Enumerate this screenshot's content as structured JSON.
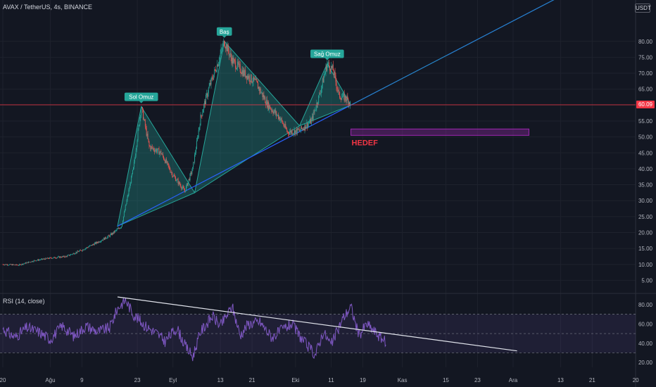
{
  "header": {
    "symbol_title": "AVAX / TetherUS, 4s, BINANCE",
    "currency": "USDT"
  },
  "colors": {
    "background": "#131722",
    "grid": "#1e222d",
    "axis_text": "#b2b5be",
    "candle_up": "#26a69a",
    "candle_down": "#ef5350",
    "pattern_fill": "rgba(38,166,154,0.30)",
    "pattern_line": "#26a69a",
    "trendline": "#2962ff",
    "price_line": "#f23645",
    "target_box_fill": "rgba(156,39,176,0.35)",
    "target_box_border": "#9c27b0",
    "target_text": "#f23645",
    "rsi_line": "#7e57c2",
    "rsi_band": "rgba(126,87,194,0.12)"
  },
  "current_price": "60.09",
  "annotations": {
    "left_shoulder": "Sol Omuz",
    "head": "Baş",
    "right_shoulder": "Sağ Omuz",
    "target": "HEDEF"
  },
  "rsi_panel": {
    "title": "RSI (14, close)"
  },
  "chart_data": [
    {
      "type": "candlestick",
      "title": "AVAX / TetherUS, 4s, BINANCE",
      "y_axis_ticks": [
        5,
        10,
        15,
        20,
        25,
        30,
        35,
        40,
        45,
        50,
        55,
        60,
        65,
        70,
        75,
        80
      ],
      "y_tick_labels": [
        "5.00",
        "10.00",
        "15.00",
        "20.00",
        "25.00",
        "30.00",
        "35.00",
        "40.00",
        "45.00",
        "50.00",
        "55.00",
        "60.00",
        "65.00",
        "70.00",
        "75.00",
        "80.00"
      ],
      "ylim": [
        2,
        89
      ],
      "x_tick_labels": [
        "20",
        "Ağu",
        "9",
        "23",
        "Eyl",
        "13",
        "21",
        "Eki",
        "11",
        "19",
        "Kas",
        "15",
        "23",
        "Ara",
        "13",
        "21",
        "20"
      ],
      "x_tick_days": [
        0,
        12,
        20,
        34,
        43,
        55,
        63,
        74,
        83,
        91,
        101,
        112,
        120,
        129,
        141,
        149,
        160
      ],
      "x_axis_origin": "2021-07-20",
      "price_path": [
        [
          0,
          10
        ],
        [
          4,
          9.8
        ],
        [
          8,
          11.2
        ],
        [
          12,
          12
        ],
        [
          16,
          12.5
        ],
        [
          20,
          14.5
        ],
        [
          24,
          17
        ],
        [
          27,
          19
        ],
        [
          30,
          22
        ],
        [
          33,
          40
        ],
        [
          35,
          59.5
        ],
        [
          37,
          47
        ],
        [
          40,
          45
        ],
        [
          43,
          38
        ],
        [
          46,
          33
        ],
        [
          48,
          40
        ],
        [
          50,
          56
        ],
        [
          52,
          65
        ],
        [
          54,
          72
        ],
        [
          56,
          80
        ],
        [
          58,
          74
        ],
        [
          61,
          70
        ],
        [
          64,
          67
        ],
        [
          67,
          60
        ],
        [
          70,
          56
        ],
        [
          72,
          51.5
        ],
        [
          75,
          52
        ],
        [
          78,
          55
        ],
        [
          80,
          63
        ],
        [
          82,
          73
        ],
        [
          83.5,
          71
        ],
        [
          85,
          63
        ],
        [
          87,
          62
        ],
        [
          88,
          60.1
        ]
      ],
      "head_and_shoulders": {
        "left_shoulder": {
          "day": 35,
          "price": 59.5
        },
        "head": {
          "day": 56,
          "price": 80
        },
        "right_shoulder": {
          "day": 82,
          "price": 73
        },
        "neckline": [
          [
            29,
            22
          ],
          [
            48.5,
            32.5
          ],
          [
            75,
            53.5
          ],
          [
            88,
            60
          ]
        ]
      },
      "current_price": 60.09,
      "target_zone": {
        "day_start": 88,
        "day_end": 133,
        "price_low": 50.5,
        "price_high": 52.5,
        "label": "HEDEF"
      }
    },
    {
      "type": "line",
      "title": "RSI (14, close)",
      "y_tick_labels": [
        "20.00",
        "40.00",
        "60.00",
        "80.00"
      ],
      "y_ticks": [
        20,
        40,
        60,
        80
      ],
      "ylim": [
        15,
        88
      ],
      "bands": [
        30,
        50,
        70
      ],
      "rsi_path": [
        [
          0,
          55
        ],
        [
          3,
          46
        ],
        [
          6,
          56
        ],
        [
          9,
          52
        ],
        [
          12,
          44
        ],
        [
          15,
          58
        ],
        [
          18,
          47
        ],
        [
          21,
          58
        ],
        [
          24,
          52
        ],
        [
          27,
          56
        ],
        [
          29,
          76
        ],
        [
          31,
          85
        ],
        [
          33,
          70
        ],
        [
          36,
          58
        ],
        [
          39,
          50
        ],
        [
          41,
          42
        ],
        [
          44,
          56
        ],
        [
          46,
          38
        ],
        [
          48,
          26
        ],
        [
          50,
          52
        ],
        [
          53,
          68
        ],
        [
          55,
          58
        ],
        [
          58,
          78
        ],
        [
          60,
          48
        ],
        [
          62,
          60
        ],
        [
          65,
          62
        ],
        [
          68,
          46
        ],
        [
          71,
          55
        ],
        [
          73,
          60
        ],
        [
          76,
          42
        ],
        [
          79,
          28
        ],
        [
          81,
          52
        ],
        [
          83,
          38
        ],
        [
          86,
          66
        ],
        [
          88,
          78
        ],
        [
          90,
          48
        ],
        [
          92,
          60
        ],
        [
          95,
          48
        ],
        [
          97,
          40
        ]
      ],
      "divergence_line": [
        [
          29,
          88
        ],
        [
          130,
          32
        ]
      ]
    }
  ]
}
